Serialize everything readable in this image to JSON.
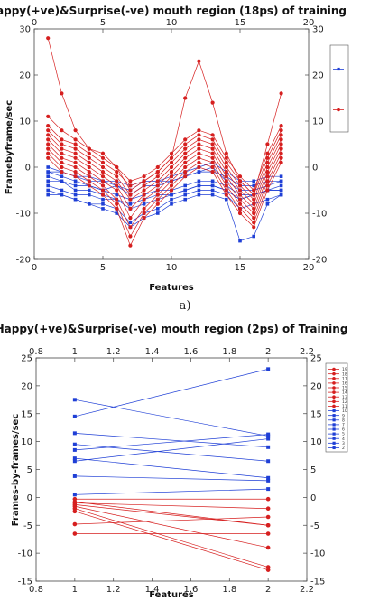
{
  "caption_a": "a)",
  "chart_data": [
    {
      "type": "line",
      "title": "Happy(+ve)&Surprise(-ve) mouth region (18ps) of training",
      "xlabel": "Features",
      "ylabel": "Framebyframe/sec",
      "xlim": [
        0,
        20
      ],
      "ylim": [
        -20,
        30
      ],
      "xticks": [
        0,
        5,
        10,
        15,
        20
      ],
      "yticks": [
        -20,
        -10,
        0,
        10,
        20,
        30
      ],
      "legend_placement": "right",
      "legend_colors": [
        "#1f3fd6",
        "#d61f1f"
      ],
      "x": [
        1,
        2,
        3,
        4,
        5,
        6,
        7,
        8,
        9,
        10,
        11,
        12,
        13,
        14,
        15,
        16,
        17,
        18
      ],
      "series": [
        {
          "color": "#1f3fd6",
          "values": [
            -1,
            -2,
            -3,
            -4,
            -5,
            -4,
            -6,
            -4,
            -4,
            -3,
            -2,
            -1,
            0,
            -3,
            -5,
            -5,
            -4,
            -3
          ]
        },
        {
          "color": "#1f3fd6",
          "values": [
            -2,
            -3,
            -4,
            -4,
            -5,
            -6,
            -7,
            -6,
            -5,
            -5,
            -4,
            -3,
            -3,
            -4,
            -6,
            -6,
            -5,
            -4
          ]
        },
        {
          "color": "#1f3fd6",
          "values": [
            -3,
            -3,
            -5,
            -5,
            -6,
            -7,
            -9,
            -8,
            -7,
            -6,
            -5,
            -4,
            -4,
            -5,
            -7,
            -6,
            -5,
            -5
          ]
        },
        {
          "color": "#1f3fd6",
          "values": [
            -5,
            -6,
            -7,
            -8,
            -9,
            -10,
            -13,
            -11,
            -10,
            -8,
            -7,
            -6,
            -6,
            -7,
            -16,
            -15,
            -8,
            -6
          ]
        },
        {
          "color": "#1f3fd6",
          "values": [
            -6,
            -6,
            -7,
            -8,
            -8,
            -9,
            -12,
            -10,
            -9,
            -7,
            -6,
            -5,
            -5,
            -6,
            -9,
            -8,
            -7,
            -6
          ]
        },
        {
          "color": "#1f3fd6",
          "values": [
            -4,
            -5,
            -6,
            -6,
            -7,
            -7,
            -8,
            -7,
            -6,
            -6,
            -5,
            -4,
            -4,
            -5,
            -7,
            -6,
            -5,
            -5
          ]
        },
        {
          "color": "#1f3fd6",
          "values": [
            0,
            -1,
            -2,
            -2,
            -3,
            -3,
            -4,
            -3,
            -3,
            -2,
            -1,
            0,
            1,
            -1,
            -3,
            -3,
            -2,
            -2
          ]
        },
        {
          "color": "#1f3fd6",
          "values": [
            -1,
            -1,
            -2,
            -3,
            -3,
            -4,
            -5,
            -3,
            -3,
            -3,
            -2,
            -1,
            -1,
            -2,
            -4,
            -4,
            -3,
            -3
          ]
        },
        {
          "color": "#d61f1f",
          "values": [
            28,
            16,
            8,
            4,
            3,
            0,
            -5,
            -3,
            -1,
            2,
            15,
            23,
            14,
            3,
            -3,
            -6,
            5,
            16
          ]
        },
        {
          "color": "#d61f1f",
          "values": [
            11,
            8,
            6,
            4,
            2,
            0,
            -3,
            -2,
            0,
            3,
            6,
            8,
            7,
            2,
            -2,
            -5,
            3,
            9
          ]
        },
        {
          "color": "#d61f1f",
          "values": [
            9,
            6,
            5,
            3,
            1,
            -1,
            -4,
            -3,
            -1,
            2,
            5,
            7,
            6,
            1,
            -3,
            -6,
            2,
            8
          ]
        },
        {
          "color": "#d61f1f",
          "values": [
            8,
            5,
            4,
            2,
            0,
            -2,
            -6,
            -4,
            -2,
            1,
            4,
            6,
            5,
            0,
            -4,
            -7,
            1,
            7
          ]
        },
        {
          "color": "#d61f1f",
          "values": [
            7,
            4,
            3,
            1,
            -1,
            -3,
            -7,
            -5,
            -3,
            0,
            3,
            5,
            4,
            -1,
            -5,
            -8,
            0,
            6
          ]
        },
        {
          "color": "#d61f1f",
          "values": [
            6,
            3,
            2,
            0,
            -2,
            -4,
            -9,
            -6,
            -4,
            -1,
            2,
            4,
            3,
            -2,
            -6,
            -9,
            -1,
            5
          ]
        },
        {
          "color": "#d61f1f",
          "values": [
            5,
            2,
            1,
            -1,
            -3,
            -5,
            -11,
            -7,
            -5,
            -2,
            1,
            3,
            2,
            -3,
            -7,
            -10,
            -2,
            4
          ]
        },
        {
          "color": "#d61f1f",
          "values": [
            4,
            1,
            0,
            -2,
            -4,
            -7,
            -13,
            -9,
            -6,
            -3,
            0,
            2,
            1,
            -4,
            -8,
            -11,
            -3,
            3
          ]
        },
        {
          "color": "#d61f1f",
          "values": [
            3,
            0,
            -1,
            -3,
            -5,
            -8,
            -15,
            -10,
            -7,
            -4,
            -1,
            1,
            0,
            -5,
            -9,
            -12,
            -4,
            2
          ]
        },
        {
          "color": "#d61f1f",
          "values": [
            2,
            -1,
            -2,
            -4,
            -6,
            -9,
            -17,
            -11,
            -8,
            -5,
            -2,
            0,
            -1,
            -6,
            -10,
            -13,
            -5,
            1
          ]
        }
      ]
    },
    {
      "type": "line",
      "title": "Happy(+ve)&Surprise(-ve) mouth region (2ps) of Training",
      "xlabel": "Features",
      "ylabel": "Frames-by-frames/sec",
      "xlim": [
        0.8,
        2.2
      ],
      "ylim": [
        -15,
        25
      ],
      "xticks": [
        0.8,
        1,
        1.2,
        1.4,
        1.6,
        1.8,
        2,
        2.2
      ],
      "yticks": [
        -15,
        -10,
        -5,
        0,
        5,
        10,
        15,
        20,
        25
      ],
      "legend_placement": "right",
      "legend_labels": [
        "19",
        "18",
        "17",
        "16",
        "15",
        "14",
        "13",
        "12",
        "11",
        "10",
        "9",
        "8",
        "7",
        "6",
        "5",
        "4",
        "3",
        "2"
      ],
      "legend_colors": [
        "#d61f1f",
        "#d61f1f",
        "#d61f1f",
        "#d61f1f",
        "#d61f1f",
        "#d61f1f",
        "#d61f1f",
        "#d61f1f",
        "#d61f1f",
        "#1f3fd6",
        "#1f3fd6",
        "#1f3fd6",
        "#1f3fd6",
        "#1f3fd6",
        "#1f3fd6",
        "#1f3fd6",
        "#1f3fd6",
        "#1f3fd6"
      ],
      "x": [
        1,
        2
      ],
      "series": [
        {
          "color": "#1f3fd6",
          "values": [
            17.5,
            11
          ]
        },
        {
          "color": "#1f3fd6",
          "values": [
            14.5,
            23
          ]
        },
        {
          "color": "#1f3fd6",
          "values": [
            11.5,
            9
          ]
        },
        {
          "color": "#1f3fd6",
          "values": [
            9.5,
            6.5
          ]
        },
        {
          "color": "#1f3fd6",
          "values": [
            8.5,
            11.3
          ]
        },
        {
          "color": "#1f3fd6",
          "values": [
            7,
            3.5
          ]
        },
        {
          "color": "#1f3fd6",
          "values": [
            6.5,
            10.5
          ]
        },
        {
          "color": "#1f3fd6",
          "values": [
            3.8,
            3
          ]
        },
        {
          "color": "#1f3fd6",
          "values": [
            0.5,
            1.5
          ]
        },
        {
          "color": "#d61f1f",
          "values": [
            -0.3,
            -0.3
          ]
        },
        {
          "color": "#d61f1f",
          "values": [
            -1,
            -2
          ]
        },
        {
          "color": "#d61f1f",
          "values": [
            -1.3,
            -5
          ]
        },
        {
          "color": "#d61f1f",
          "values": [
            -1.6,
            -9
          ]
        },
        {
          "color": "#d61f1f",
          "values": [
            -2,
            -12.5
          ]
        },
        {
          "color": "#d61f1f",
          "values": [
            -2.5,
            -13
          ]
        },
        {
          "color": "#d61f1f",
          "values": [
            -4.8,
            -3.5
          ]
        },
        {
          "color": "#d61f1f",
          "values": [
            -6.5,
            -6.5
          ]
        },
        {
          "color": "#d61f1f",
          "values": [
            -0.8,
            -5
          ]
        }
      ]
    }
  ]
}
